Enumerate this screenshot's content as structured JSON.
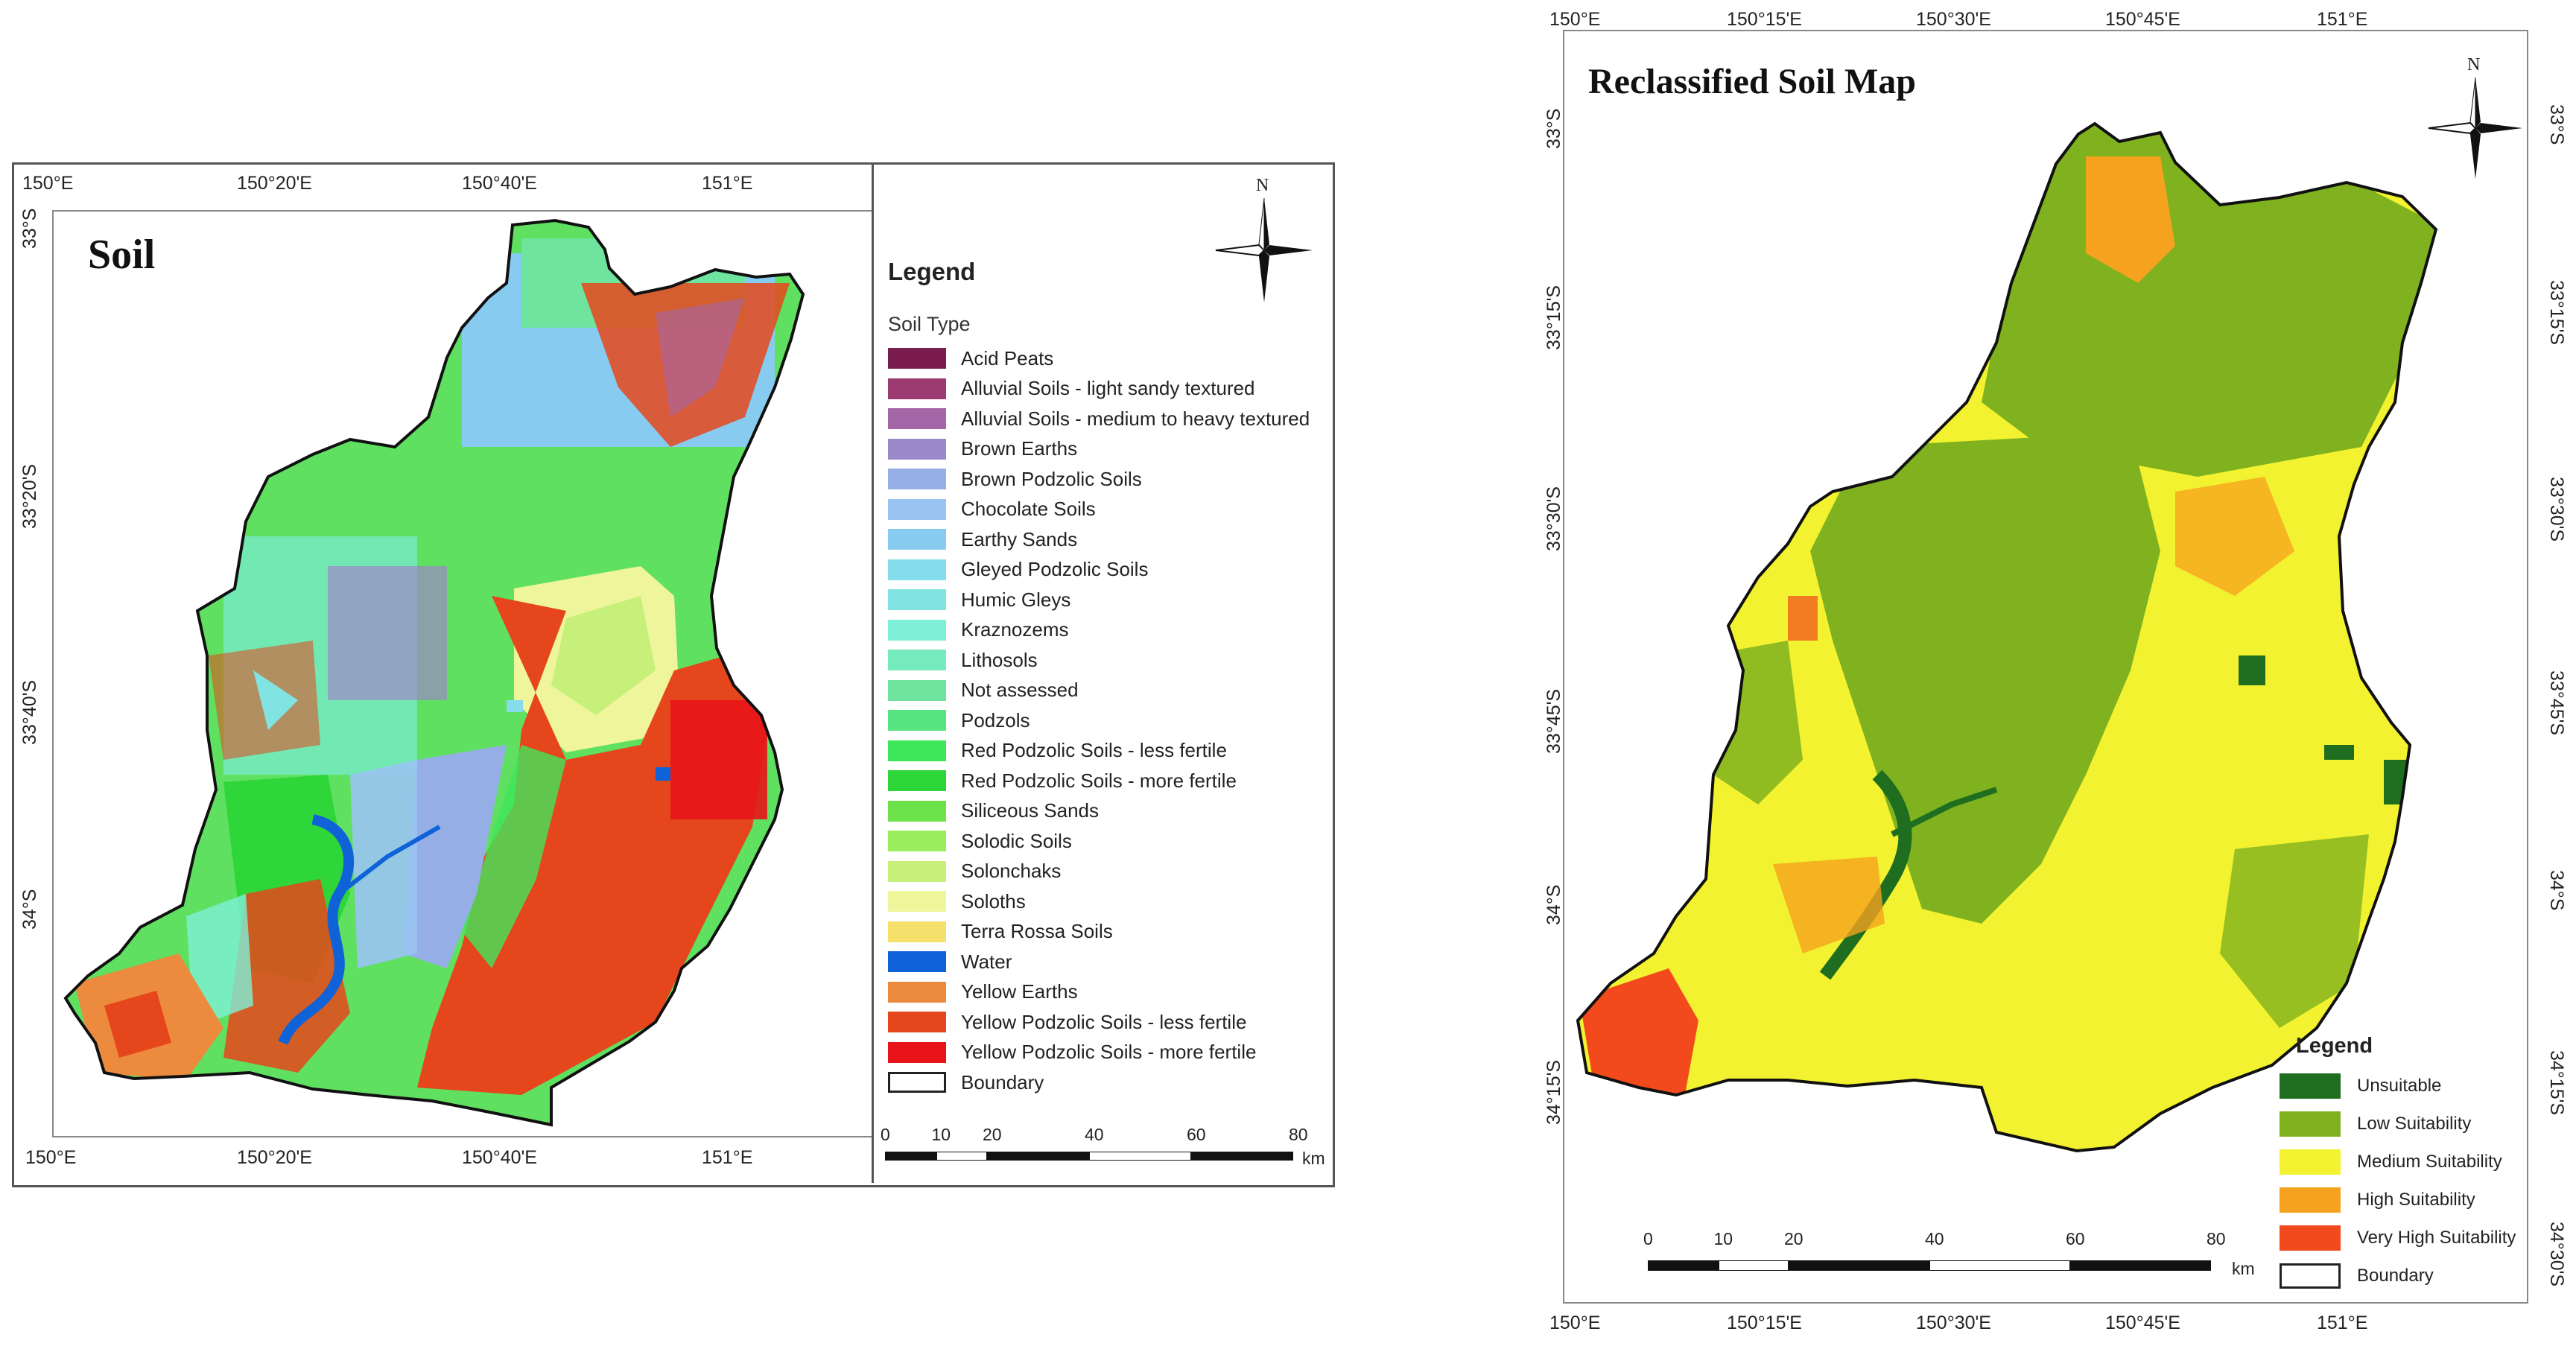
{
  "colors": {
    "acid_peats": "#7b1c4e",
    "alluvial_light": "#9c3b72",
    "alluvial_medium": "#a566a8",
    "brown_earths": "#9b88c8",
    "brown_podzolic": "#96aee6",
    "chocolate": "#99c4f2",
    "earthy_sands": "#87ccf0",
    "gleyed_podzolic": "#85dcea",
    "humic_gleys": "#82e4e2",
    "kraznozems": "#7ef0d8",
    "lithosols": "#74eabd",
    "not_assessed": "#6ee49e",
    "podzols": "#55e480",
    "red_podzolic_less": "#3ee65a",
    "red_podzolic_more": "#2ed63a",
    "siliceous": "#6ce24a",
    "solodic": "#9aee5e",
    "solonchaks": "#c6f07a",
    "soloths": "#eef59a",
    "terra_rossa": "#f4e06a",
    "water": "#0f62d8",
    "yellow_earths": "#ec8a3e",
    "yellow_podzolic_less": "#e6461c",
    "yellow_podzolic_more": "#e8141a",
    "unsuitable": "#1f6e1f",
    "low": "#7fb21e",
    "medium": "#f2f230",
    "high": "#f5a21e",
    "very_high": "#f24a1c"
  },
  "soil_map": {
    "title": "Soil",
    "north": "N",
    "top_lon": [
      "150°E",
      "150°20'E",
      "150°40'E",
      "151°E"
    ],
    "bottom_lon": [
      "150°E",
      "150°20'E",
      "150°40'E",
      "151°E"
    ],
    "left_lat": [
      "33°S",
      "33°20'S",
      "33°40'S",
      "34°S"
    ],
    "legend_title": "Legend",
    "legend_subtitle": "Soil Type",
    "legend_items": [
      {
        "label": "Acid Peats",
        "color": "#7b1c4e"
      },
      {
        "label": "Alluvial Soils - light sandy textured",
        "color": "#9c3b72"
      },
      {
        "label": "Alluvial Soils - medium to heavy textured",
        "color": "#a566a8"
      },
      {
        "label": "Brown Earths",
        "color": "#9b88c8"
      },
      {
        "label": "Brown Podzolic Soils",
        "color": "#96aee6"
      },
      {
        "label": "Chocolate Soils",
        "color": "#99c4f2"
      },
      {
        "label": "Earthy Sands",
        "color": "#87ccf0"
      },
      {
        "label": "Gleyed Podzolic Soils",
        "color": "#85dcea"
      },
      {
        "label": "Humic Gleys",
        "color": "#82e4e2"
      },
      {
        "label": "Kraznozems",
        "color": "#7ef0d8"
      },
      {
        "label": "Lithosols",
        "color": "#74eabd"
      },
      {
        "label": "Not assessed",
        "color": "#6ee49e"
      },
      {
        "label": "Podzols",
        "color": "#55e480"
      },
      {
        "label": "Red Podzolic Soils - less fertile",
        "color": "#3ee65a"
      },
      {
        "label": "Red Podzolic Soils - more fertile",
        "color": "#2ed63a"
      },
      {
        "label": "Siliceous Sands",
        "color": "#6ce24a"
      },
      {
        "label": "Solodic Soils",
        "color": "#9aee5e"
      },
      {
        "label": "Solonchaks",
        "color": "#c6f07a"
      },
      {
        "label": "Soloths",
        "color": "#eef59a"
      },
      {
        "label": "Terra Rossa Soils",
        "color": "#f4e06a"
      },
      {
        "label": "Water",
        "color": "#0f62d8"
      },
      {
        "label": "Yellow Earths",
        "color": "#ec8a3e"
      },
      {
        "label": "Yellow Podzolic Soils - less fertile",
        "color": "#e6461c"
      },
      {
        "label": "Yellow Podzolic Soils - more fertile",
        "color": "#e8141a"
      },
      {
        "label": "Boundary",
        "color": "#ffffff"
      }
    ],
    "scale_ticks": [
      "0",
      "10",
      "20",
      "40",
      "60",
      "80"
    ],
    "scale_unit": "km"
  },
  "reclass_map": {
    "title": "Reclassified Soil Map",
    "north": "N",
    "top_lon": [
      "150°E",
      "150°15'E",
      "150°30'E",
      "150°45'E",
      "151°E"
    ],
    "bottom_lon": [
      "150°E",
      "150°15'E",
      "150°30'E",
      "150°45'E",
      "151°E"
    ],
    "left_lat": [
      "33°S",
      "33°15'S",
      "33°30'S",
      "33°45'S",
      "34°S",
      "34°15'S"
    ],
    "right_lat": [
      "33°S",
      "33°15'S",
      "33°30'S",
      "33°45'S",
      "34°S",
      "34°15'S",
      "34°30'S"
    ],
    "legend_title": "Legend",
    "legend_items": [
      {
        "label": "Unsuitable",
        "color": "#1f6e1f"
      },
      {
        "label": "Low Suitability",
        "color": "#7fb21e"
      },
      {
        "label": "Medium Suitability",
        "color": "#f2f230"
      },
      {
        "label": "High Suitability",
        "color": "#f5a21e"
      },
      {
        "label": "Very High Suitability",
        "color": "#f24a1c"
      },
      {
        "label": "Boundary",
        "color": "#ffffff"
      }
    ],
    "scale_ticks": [
      "0",
      "10",
      "20",
      "40",
      "60",
      "80"
    ],
    "scale_unit": "km"
  }
}
